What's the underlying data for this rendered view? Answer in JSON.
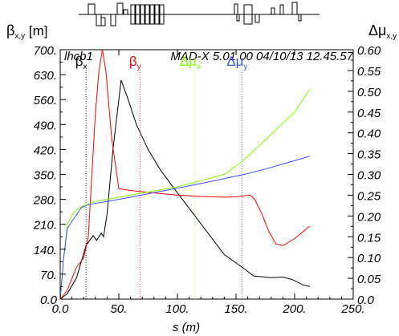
{
  "chart_data": {
    "type": "line",
    "optics_label": "lhcb1",
    "program_label": "MAD-X 5.01.00  04/10/13 12.45.57",
    "xlabel": "s (m)",
    "ylabel_left": {
      "sym": "β",
      "sub": "x,y",
      "unit": " [m]"
    },
    "ylabel_right": {
      "sym": "Δμ",
      "sub": "x,y"
    },
    "xlim": [
      0,
      250
    ],
    "ylim_left": [
      0,
      700
    ],
    "ylim_right": [
      0,
      0.6
    ],
    "x_ticks": [
      "0.0",
      "50.",
      "100.",
      "150.",
      "200.",
      "250."
    ],
    "y_left_ticks": [
      "0.0",
      "70.",
      "140.",
      "210.",
      "280.",
      "350.",
      "420.",
      "490.",
      "560.",
      "630.",
      "700."
    ],
    "y_right_ticks": [
      "0.0",
      "0.05",
      "0.10",
      "0.15",
      "0.20",
      "0.25",
      "0.30",
      "0.35",
      "0.40",
      "0.45",
      "0.50",
      "0.55",
      "0.60"
    ],
    "series": [
      {
        "name": "βx",
        "sym": "β",
        "sub": "x",
        "color": "#000000",
        "axis": "left",
        "legend_x": 22,
        "points": [
          [
            0,
            0
          ],
          [
            6,
            15
          ],
          [
            14,
            60
          ],
          [
            22,
            150
          ],
          [
            28,
            178
          ],
          [
            31,
            165
          ],
          [
            35,
            185
          ],
          [
            37,
            175
          ],
          [
            40,
            240
          ],
          [
            45,
            420
          ],
          [
            52,
            615
          ],
          [
            58,
            560
          ],
          [
            65,
            490
          ],
          [
            75,
            420
          ],
          [
            85,
            365
          ],
          [
            95,
            320
          ],
          [
            110,
            255
          ],
          [
            125,
            190
          ],
          [
            140,
            125
          ],
          [
            155,
            90
          ],
          [
            165,
            65
          ],
          [
            180,
            60
          ],
          [
            190,
            62
          ],
          [
            198,
            55
          ],
          [
            207,
            40
          ],
          [
            213,
            35
          ]
        ]
      },
      {
        "name": "βy",
        "sym": "β",
        "sub": "y",
        "color": "#ff0000",
        "axis": "left",
        "legend_x": 68,
        "points": [
          [
            0,
            0
          ],
          [
            6,
            25
          ],
          [
            14,
            90
          ],
          [
            20,
            115
          ],
          [
            24,
            175
          ],
          [
            30,
            520
          ],
          [
            33,
            640
          ],
          [
            36,
            700
          ],
          [
            39,
            640
          ],
          [
            44,
            450
          ],
          [
            50,
            310
          ],
          [
            60,
            305
          ],
          [
            80,
            298
          ],
          [
            100,
            292
          ],
          [
            120,
            288
          ],
          [
            140,
            286
          ],
          [
            150,
            287
          ],
          [
            162,
            292
          ],
          [
            166,
            280
          ],
          [
            172,
            240
          ],
          [
            178,
            190
          ],
          [
            184,
            155
          ],
          [
            190,
            150
          ],
          [
            200,
            170
          ],
          [
            213,
            205
          ]
        ]
      },
      {
        "name": "Δμx",
        "sym": "Δμ",
        "sub": "x",
        "color": "#80ff00",
        "axis": "right",
        "legend_x": 115,
        "points": [
          [
            0,
            0
          ],
          [
            3,
            0.1
          ],
          [
            6,
            0.18
          ],
          [
            12,
            0.21
          ],
          [
            20,
            0.225
          ],
          [
            30,
            0.235
          ],
          [
            40,
            0.24
          ],
          [
            60,
            0.25
          ],
          [
            80,
            0.26
          ],
          [
            100,
            0.27
          ],
          [
            120,
            0.285
          ],
          [
            140,
            0.3
          ],
          [
            155,
            0.33
          ],
          [
            170,
            0.37
          ],
          [
            185,
            0.41
          ],
          [
            200,
            0.45
          ],
          [
            213,
            0.505
          ]
        ]
      },
      {
        "name": "Δμy",
        "sym": "Δμ",
        "sub": "y",
        "color": "#3c50ff",
        "axis": "right",
        "legend_x": 155,
        "points": [
          [
            0,
            0
          ],
          [
            3,
            0.1
          ],
          [
            6,
            0.17
          ],
          [
            12,
            0.195
          ],
          [
            18,
            0.22
          ],
          [
            25,
            0.228
          ],
          [
            40,
            0.235
          ],
          [
            60,
            0.245
          ],
          [
            80,
            0.256
          ],
          [
            100,
            0.267
          ],
          [
            120,
            0.278
          ],
          [
            140,
            0.29
          ],
          [
            160,
            0.302
          ],
          [
            175,
            0.313
          ],
          [
            190,
            0.325
          ],
          [
            200,
            0.333
          ],
          [
            213,
            0.344
          ]
        ]
      }
    ]
  }
}
